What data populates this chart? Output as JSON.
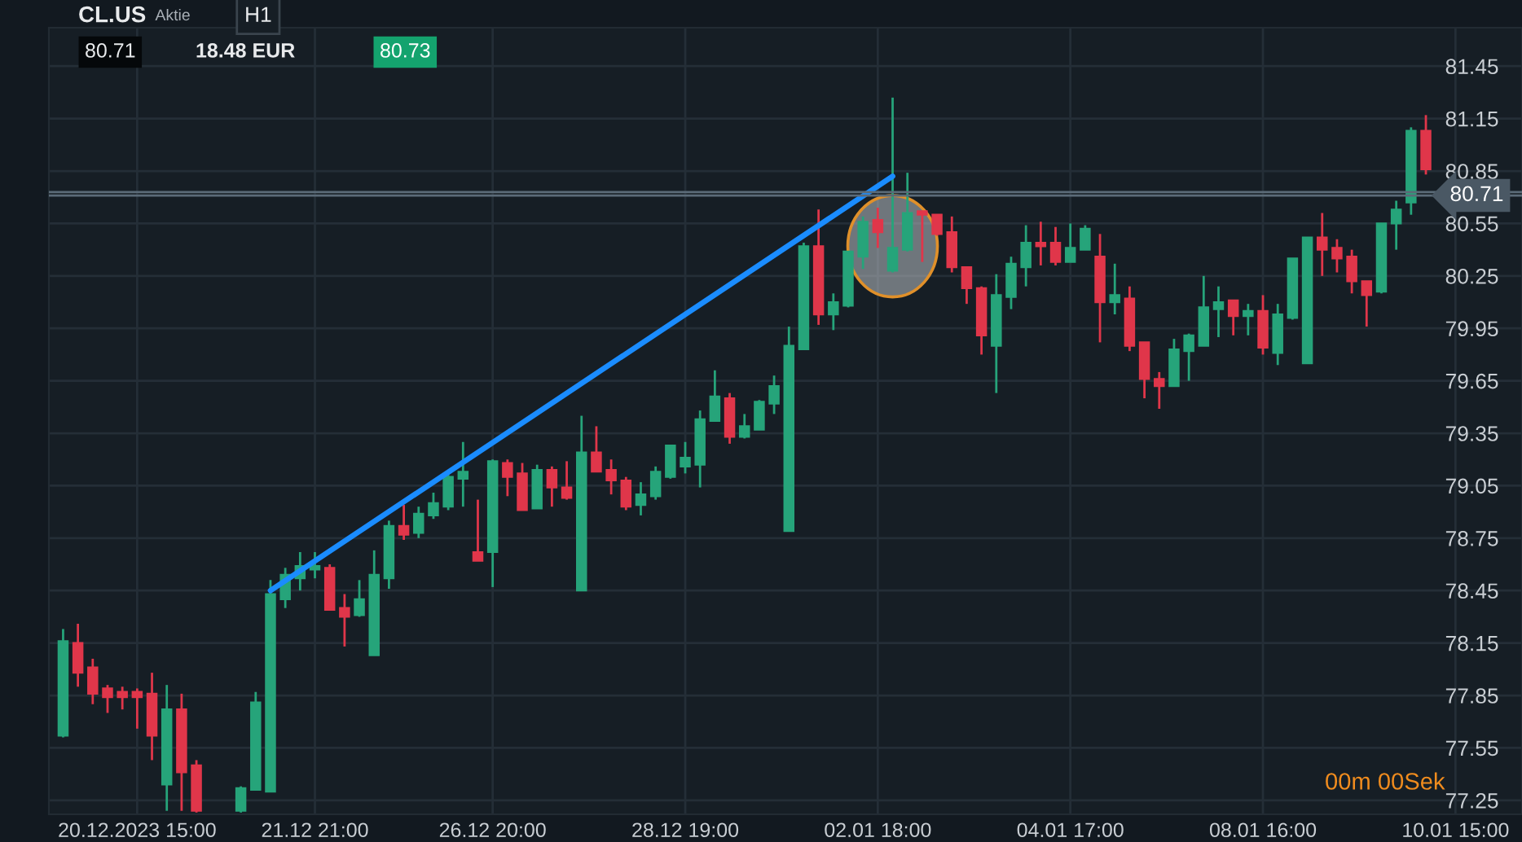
{
  "chart_data": {
    "type": "candlestick",
    "title": "CL.US",
    "subtitle": "Aktie",
    "annotations": [
      "H1",
      "80.71",
      "18.48 EUR",
      "80.73",
      "00m 00Sek"
    ],
    "categories": [
      null,
      null,
      null,
      null,
      null,
      "20.12.2023 15:00",
      null,
      null,
      null,
      null,
      null,
      null,
      null,
      null,
      null,
      null,
      null,
      "21.12 21:00",
      null,
      null,
      null,
      null,
      null,
      null,
      null,
      null,
      null,
      null,
      null,
      "26.12 20:00",
      null,
      null,
      null,
      null,
      null,
      null,
      null,
      null,
      null,
      null,
      null,
      null,
      "28.12 19:00",
      null,
      null,
      null,
      null,
      null,
      null,
      null,
      null,
      null,
      null,
      null,
      null,
      "02.01 18:00",
      null,
      null,
      null,
      null,
      null,
      null,
      null,
      null,
      null,
      null,
      null,
      null,
      "04.01 17:00",
      null,
      null,
      null,
      null,
      null,
      null,
      null,
      null,
      null,
      null,
      null,
      null,
      "08.01 16:00",
      null,
      null,
      null,
      null,
      null,
      null,
      null,
      null,
      null,
      null,
      null,
      null,
      "10.01 15:00"
    ],
    "ohlc": [
      [
        77.62,
        78.23,
        77.61,
        78.16
      ],
      [
        78.15,
        78.26,
        77.9,
        77.98
      ],
      [
        78.01,
        78.06,
        77.8,
        77.86
      ],
      [
        77.89,
        77.91,
        77.75,
        77.84
      ],
      [
        77.87,
        77.9,
        77.77,
        77.84
      ],
      [
        77.87,
        77.89,
        77.66,
        77.84
      ],
      [
        77.86,
        77.98,
        77.48,
        77.62
      ],
      [
        77.34,
        77.91,
        77.19,
        77.77
      ],
      [
        77.77,
        77.86,
        77.19,
        77.41
      ],
      [
        77.45,
        77.48,
        77.18,
        77.19
      ],
      null,
      null,
      [
        77.19,
        77.33,
        77.18,
        77.32
      ],
      [
        77.31,
        77.87,
        77.31,
        77.81
      ],
      [
        77.3,
        78.51,
        77.3,
        78.43
      ],
      [
        78.4,
        78.58,
        78.35,
        78.54
      ],
      [
        78.52,
        78.67,
        78.45,
        78.59
      ],
      [
        78.57,
        78.67,
        78.52,
        78.59
      ],
      [
        78.58,
        78.6,
        78.34,
        78.34
      ],
      [
        78.35,
        78.43,
        78.13,
        78.3
      ],
      [
        78.31,
        78.51,
        78.3,
        78.4
      ],
      [
        78.08,
        78.68,
        78.08,
        78.54
      ],
      [
        78.52,
        78.85,
        78.46,
        78.82
      ],
      [
        78.82,
        78.94,
        78.74,
        78.77
      ],
      [
        78.78,
        78.93,
        78.75,
        78.89
      ],
      [
        78.88,
        79.01,
        78.86,
        78.95
      ],
      [
        78.93,
        79.12,
        78.91,
        79.1
      ],
      [
        79.09,
        79.3,
        78.93,
        79.13
      ],
      [
        78.67,
        78.97,
        78.62,
        78.62
      ],
      [
        78.67,
        79.2,
        78.47,
        79.19
      ],
      [
        79.18,
        79.2,
        78.99,
        79.1
      ],
      [
        79.12,
        79.18,
        78.91,
        78.91
      ],
      [
        78.92,
        79.17,
        78.92,
        79.14
      ],
      [
        79.14,
        79.16,
        78.93,
        79.04
      ],
      [
        79.04,
        79.19,
        78.97,
        78.98
      ],
      [
        78.45,
        79.45,
        78.45,
        79.24
      ],
      [
        79.24,
        79.39,
        79.13,
        79.13
      ],
      [
        79.14,
        79.2,
        79.0,
        79.08
      ],
      [
        79.08,
        79.1,
        78.91,
        78.93
      ],
      [
        78.94,
        79.07,
        78.88,
        79.0
      ],
      [
        78.99,
        79.16,
        78.97,
        79.13
      ],
      [
        79.1,
        79.28,
        79.09,
        79.28
      ],
      [
        79.16,
        79.3,
        79.12,
        79.21
      ],
      [
        79.17,
        79.48,
        79.04,
        79.43
      ],
      [
        79.42,
        79.71,
        79.42,
        79.56
      ],
      [
        79.55,
        79.58,
        79.29,
        79.33
      ],
      [
        79.33,
        79.46,
        79.32,
        79.39
      ],
      [
        79.37,
        79.54,
        79.37,
        79.53
      ],
      [
        79.52,
        79.68,
        79.46,
        79.62
      ],
      [
        78.79,
        79.96,
        78.79,
        79.85
      ],
      [
        79.83,
        80.44,
        79.83,
        80.42
      ],
      [
        80.42,
        80.63,
        79.97,
        80.03
      ],
      [
        80.03,
        80.15,
        79.94,
        80.1
      ],
      [
        80.08,
        80.39,
        80.07,
        80.39
      ],
      [
        80.36,
        80.59,
        80.29,
        80.56
      ],
      [
        80.57,
        80.64,
        80.41,
        80.5
      ],
      [
        80.28,
        81.27,
        80.27,
        80.41
      ],
      [
        80.4,
        80.84,
        80.39,
        80.61
      ],
      [
        80.62,
        80.62,
        80.33,
        80.6
      ],
      [
        80.6,
        80.6,
        80.48,
        80.49
      ],
      [
        80.5,
        80.59,
        80.27,
        80.3
      ],
      [
        80.3,
        80.3,
        80.09,
        80.18
      ],
      [
        80.18,
        80.19,
        79.8,
        79.91
      ],
      [
        79.85,
        80.26,
        79.58,
        80.14
      ],
      [
        80.13,
        80.36,
        80.06,
        80.32
      ],
      [
        80.3,
        80.54,
        80.19,
        80.44
      ],
      [
        80.44,
        80.56,
        80.31,
        80.42
      ],
      [
        80.44,
        80.53,
        80.31,
        80.33
      ],
      [
        80.33,
        80.55,
        80.33,
        80.41
      ],
      [
        80.4,
        80.54,
        80.4,
        80.52
      ],
      [
        80.36,
        80.49,
        79.87,
        80.1
      ],
      [
        80.1,
        80.32,
        80.03,
        80.14
      ],
      [
        80.12,
        80.19,
        79.82,
        79.85
      ],
      [
        79.87,
        79.87,
        79.55,
        79.66
      ],
      [
        79.66,
        79.7,
        79.49,
        79.62
      ],
      [
        79.62,
        79.89,
        79.62,
        79.83
      ],
      [
        79.82,
        79.92,
        79.65,
        79.91
      ],
      [
        79.85,
        80.25,
        79.85,
        80.07
      ],
      [
        80.06,
        80.19,
        79.9,
        80.1
      ],
      [
        80.11,
        80.11,
        79.91,
        80.02
      ],
      [
        80.02,
        80.09,
        79.91,
        80.05
      ],
      [
        80.05,
        80.14,
        79.8,
        79.84
      ],
      [
        79.81,
        80.09,
        79.74,
        80.03
      ],
      [
        80.01,
        80.35,
        80.0,
        80.35
      ],
      [
        79.75,
        80.47,
        79.75,
        80.47
      ],
      [
        80.47,
        80.61,
        80.25,
        80.4
      ],
      [
        80.41,
        80.46,
        80.27,
        80.35
      ],
      [
        80.36,
        80.4,
        80.15,
        80.22
      ],
      [
        80.22,
        80.22,
        79.96,
        80.14
      ],
      [
        80.16,
        80.55,
        80.15,
        80.55
      ],
      [
        80.55,
        80.68,
        80.4,
        80.63
      ],
      [
        80.67,
        81.1,
        80.6,
        81.08
      ],
      [
        81.08,
        81.17,
        80.83,
        80.86
      ],
      null,
      null
    ],
    "colors": [
      "#26a47a",
      "#e0364a",
      "#e0364a",
      "#e0364a",
      "#e0364a",
      "#e0364a",
      "#e0364a",
      "#26a47a",
      "#e0364a",
      "#e0364a",
      null,
      null,
      "#26a47a",
      "#26a47a",
      "#26a47a",
      "#26a47a",
      "#26a47a",
      "#26a47a",
      "#e0364a",
      "#e0364a",
      "#26a47a",
      "#26a47a",
      "#26a47a",
      "#e0364a",
      "#26a47a",
      "#26a47a",
      "#26a47a",
      "#26a47a",
      "#e0364a",
      "#26a47a",
      "#e0364a",
      "#e0364a",
      "#26a47a",
      "#e0364a",
      "#e0364a",
      "#26a47a",
      "#e0364a",
      "#e0364a",
      "#e0364a",
      "#26a47a",
      "#26a47a",
      "#26a47a",
      "#26a47a",
      "#26a47a",
      "#26a47a",
      "#e0364a",
      "#26a47a",
      "#26a47a",
      "#26a47a",
      "#26a47a",
      "#26a47a",
      "#e0364a",
      "#26a47a",
      "#26a47a",
      "#26a47a",
      "#e0364a",
      "#26a47a",
      "#26a47a",
      "#e0364a",
      "#e0364a",
      "#e0364a",
      "#e0364a",
      "#e0364a",
      "#26a47a",
      "#26a47a",
      "#26a47a",
      "#e0364a",
      "#e0364a",
      "#26a47a",
      "#26a47a",
      "#e0364a",
      "#26a47a",
      "#e0364a",
      "#e0364a",
      "#e0364a",
      "#26a47a",
      "#26a47a",
      "#26a47a",
      "#26a47a",
      "#e0364a",
      "#26a47a",
      "#e0364a",
      "#26a47a",
      "#26a47a",
      "#26a47a",
      "#e0364a",
      "#e0364a",
      "#e0364a",
      "#e0364a",
      "#26a47a",
      "#26a47a",
      "#26a47a",
      "#e0364a",
      null,
      null
    ],
    "series": [
      {
        "type": "line",
        "values": [
          null,
          null,
          null,
          null,
          null,
          null,
          null,
          null,
          null,
          null,
          null,
          null,
          null,
          null,
          78.45,
          null,
          null,
          null,
          null,
          null,
          null,
          null,
          null,
          null,
          null,
          null,
          null,
          null,
          null,
          null,
          null,
          null,
          null,
          null,
          null,
          null,
          null,
          null,
          null,
          null,
          null,
          null,
          null,
          null,
          null,
          null,
          null,
          null,
          null,
          null,
          null,
          null,
          null,
          null,
          null,
          null,
          80.82,
          null,
          null,
          null,
          null,
          null,
          null,
          null,
          null,
          null,
          null,
          null,
          null,
          null,
          null,
          null,
          null,
          null,
          null,
          null,
          null,
          null,
          null,
          null,
          null,
          null,
          null,
          null,
          null,
          null,
          null,
          null,
          null,
          null,
          null,
          null,
          null,
          null,
          null
        ],
        "color": "#1a8cff"
      }
    ],
    "ref_lines": [
      {
        "axis": "y",
        "value": 80.73,
        "color": "#5b6b78"
      },
      {
        "axis": "y",
        "value": 80.71,
        "label": "80.71",
        "color": "#5b6b78"
      }
    ],
    "ylim": [
      77.17,
      81.67
    ],
    "yticks": [
      77.25,
      77.55,
      77.85,
      78.15,
      78.45,
      78.75,
      79.05,
      79.35,
      79.65,
      79.95,
      80.25,
      80.55,
      80.85,
      81.15,
      81.45
    ],
    "grid": true
  }
}
